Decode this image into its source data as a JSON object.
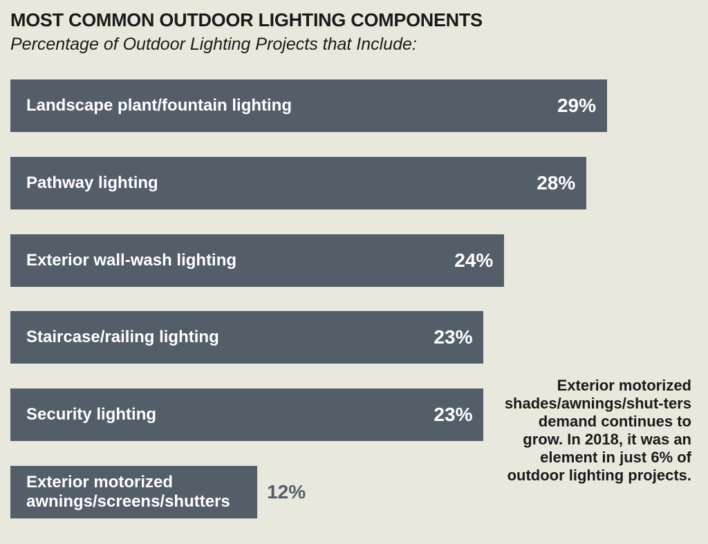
{
  "header": {
    "title": "MOST COMMON OUTDOOR LIGHTING COMPONENTS",
    "subtitle": "Percentage of Outdoor Lighting Projects that Include:"
  },
  "note": "Exterior motorized shades/awnings/shut-ters demand continues to grow. In 2018, it was an element in just 6% of outdoor lighting projects.",
  "colors": {
    "bar": "#545e68",
    "background": "#e8e8dc"
  },
  "chart_data": {
    "type": "bar",
    "orientation": "horizontal",
    "title": "MOST COMMON OUTDOOR LIGHTING COMPONENTS",
    "subtitle": "Percentage of Outdoor Lighting Projects that Include:",
    "categories": [
      "Landscape plant/fountain lighting",
      "Pathway lighting",
      "Exterior wall-wash lighting",
      "Staircase/railing lighting",
      "Security lighting",
      "Exterior motorized\nawnings/screens/shutters"
    ],
    "values": [
      29,
      28,
      24,
      23,
      23,
      12
    ],
    "value_labels": [
      "29%",
      "28%",
      "24%",
      "23%",
      "23%",
      "12%"
    ],
    "unit": "%"
  }
}
